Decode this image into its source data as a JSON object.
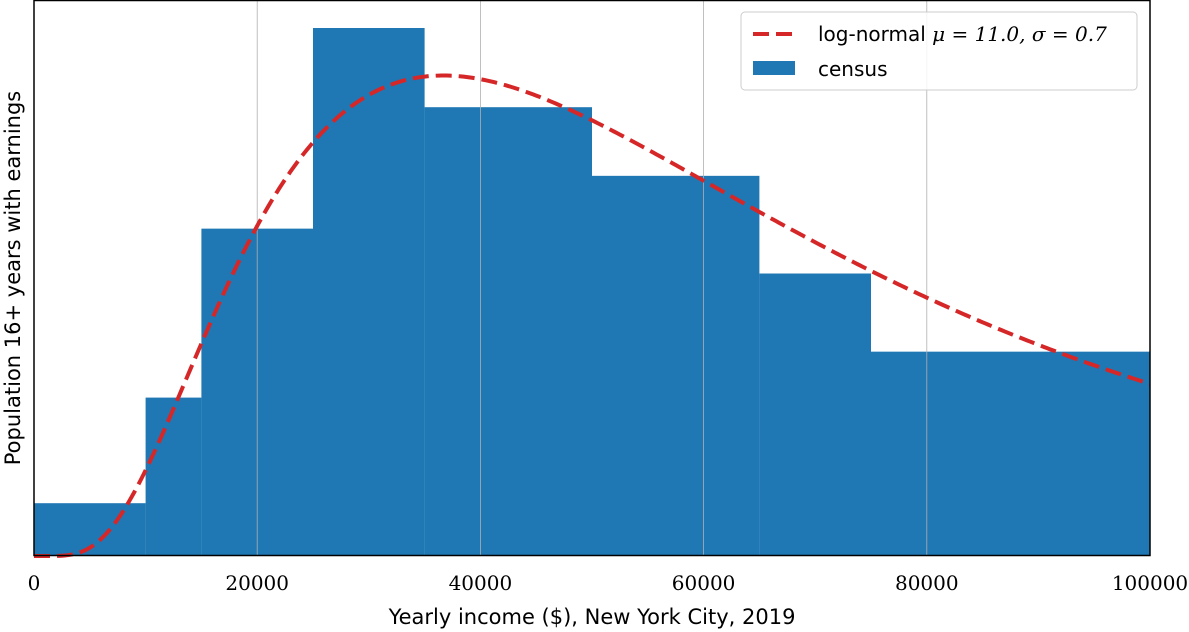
{
  "chart_data": {
    "type": "bar",
    "xlabel": "Yearly income ($), New York City, 2019",
    "ylabel": "Population 16+ years with earnings",
    "xlim": [
      0,
      100000
    ],
    "ylim": [
      0,
      1.0
    ],
    "x_ticks": [
      "0",
      "20000",
      "40000",
      "60000",
      "80000",
      "100000"
    ],
    "grid": "vertical",
    "legend_position": "top-right",
    "series": [
      {
        "name": "census",
        "kind": "histogram",
        "color": "#1f77b4",
        "bins": [
          {
            "start": 0,
            "end": 10000,
            "value": 0.1
          },
          {
            "start": 10000,
            "end": 15000,
            "value": 0.3
          },
          {
            "start": 15000,
            "end": 25000,
            "value": 0.62
          },
          {
            "start": 25000,
            "end": 35000,
            "value": 1.0
          },
          {
            "start": 35000,
            "end": 50000,
            "value": 0.85
          },
          {
            "start": 50000,
            "end": 65000,
            "value": 0.72
          },
          {
            "start": 65000,
            "end": 75000,
            "value": 0.535
          },
          {
            "start": 75000,
            "end": 100000,
            "value": 0.387
          }
        ]
      },
      {
        "name": "log-normal μ = 11.0, σ = 0.7",
        "kind": "line",
        "style": "dashed",
        "color": "#d62728",
        "mu": 11.0,
        "sigma": 0.7,
        "peak_value": 0.91
      }
    ]
  },
  "legend": {
    "line_label": "log-normal ",
    "line_math": "μ = 11.0, σ = 0.7",
    "bar_label": "census"
  }
}
